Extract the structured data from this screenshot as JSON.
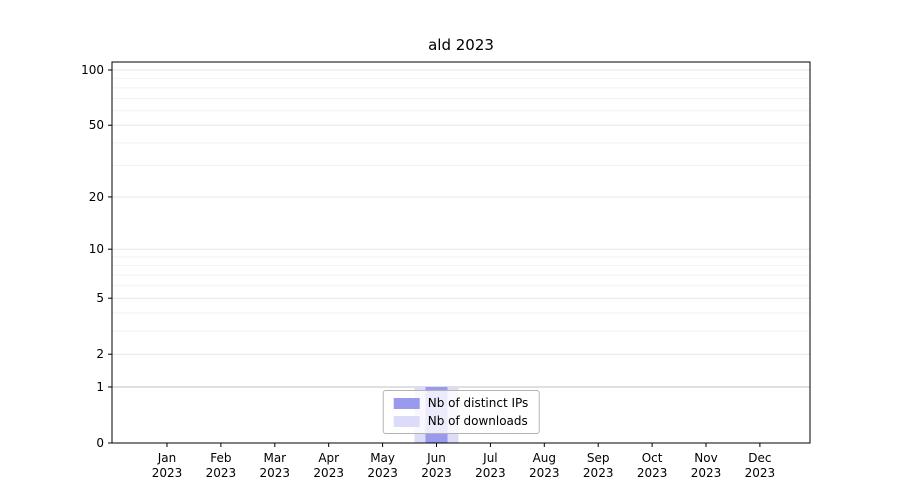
{
  "chart_data": {
    "type": "bar",
    "title": "ald 2023",
    "year": "2023",
    "months": [
      "Jan",
      "Feb",
      "Mar",
      "Apr",
      "May",
      "Jun",
      "Jul",
      "Aug",
      "Sep",
      "Oct",
      "Nov",
      "Dec"
    ],
    "categories": [
      "Jan 2023",
      "Feb 2023",
      "Mar 2023",
      "Apr 2023",
      "May 2023",
      "Jun 2023",
      "Jul 2023",
      "Aug 2023",
      "Sep 2023",
      "Oct 2023",
      "Nov 2023",
      "Dec 2023"
    ],
    "series": [
      {
        "name": "Nb of distinct IPs",
        "color": "#9999ee",
        "values": [
          0,
          0,
          0,
          0,
          0,
          1,
          0,
          0,
          0,
          0,
          0,
          0
        ]
      },
      {
        "name": "Nb of downloads",
        "color": "#dcdcf8",
        "values": [
          0,
          0,
          0,
          0,
          0,
          1,
          0,
          0,
          0,
          0,
          0,
          0
        ]
      }
    ],
    "y_axis": {
      "scale": "log1p",
      "ticks": [
        0,
        1,
        2,
        5,
        10,
        20,
        50,
        100
      ],
      "minor_ticks": [
        3,
        4,
        6,
        7,
        8,
        9,
        30,
        40,
        60,
        70,
        80,
        90
      ],
      "max": 110
    },
    "colors": {
      "major_grid": "#e7e7e7",
      "unit_grid": "#c0c0c0",
      "minor_grid": "#f2f2f2",
      "frame": "#000000"
    },
    "legend_position": "lower center",
    "grid": true
  }
}
